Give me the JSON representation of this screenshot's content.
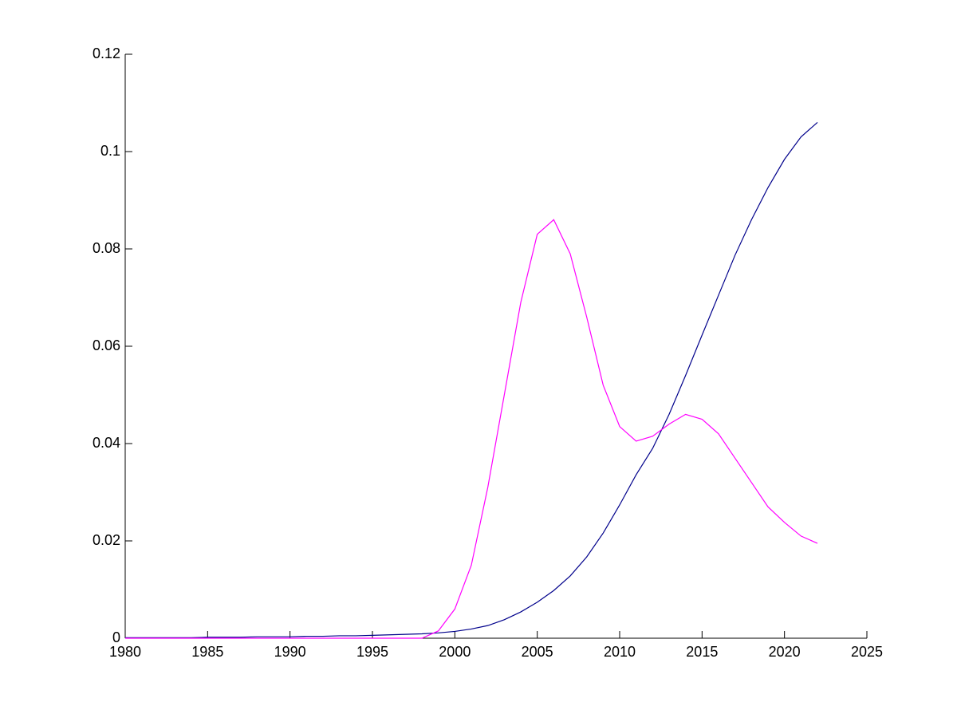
{
  "chart_data": {
    "type": "line",
    "x": [
      1980,
      1981,
      1982,
      1983,
      1984,
      1985,
      1986,
      1987,
      1988,
      1989,
      1990,
      1991,
      1992,
      1993,
      1994,
      1995,
      1996,
      1997,
      1998,
      1999,
      2000,
      2001,
      2002,
      2003,
      2004,
      2005,
      2006,
      2007,
      2008,
      2009,
      2010,
      2011,
      2012,
      2013,
      2014,
      2015,
      2016,
      2017,
      2018,
      2019,
      2020,
      2021,
      2022
    ],
    "series": [
      {
        "color": "#00008b",
        "values": [
          0.0001,
          0.0001,
          0.0001,
          0.0001,
          0.0001,
          0.0002,
          0.0002,
          0.0002,
          0.0003,
          0.0003,
          0.0003,
          0.0004,
          0.0004,
          0.0005,
          0.0005,
          0.0006,
          0.0007,
          0.0008,
          0.0009,
          0.0011,
          0.0014,
          0.0019,
          0.0026,
          0.0038,
          0.0054,
          0.0074,
          0.0098,
          0.0128,
          0.0167,
          0.0216,
          0.0274,
          0.0336,
          0.039,
          0.046,
          0.054,
          0.0623,
          0.0705,
          0.0787,
          0.086,
          0.0926,
          0.0984,
          0.103,
          0.106
        ]
      },
      {
        "color": "#ff00ff",
        "values": [
          0,
          0,
          0,
          0,
          0,
          0,
          0,
          0,
          0,
          0,
          0,
          0,
          0,
          0,
          0,
          0,
          0,
          0,
          0,
          0.0015,
          0.006,
          0.015,
          0.031,
          0.05,
          0.069,
          0.083,
          0.086,
          0.079,
          0.066,
          0.052,
          0.0435,
          0.0405,
          0.0415,
          0.044,
          0.046,
          0.045,
          0.042,
          0.037,
          0.032,
          0.027,
          0.0238,
          0.021,
          0.0195
        ]
      }
    ],
    "xlim": [
      1980,
      2025
    ],
    "xticks": [
      1980,
      1985,
      1990,
      1995,
      2000,
      2005,
      2010,
      2015,
      2020,
      2025
    ],
    "ylim": [
      0,
      0.12
    ],
    "yticks": [
      0,
      0.02,
      0.04,
      0.06,
      0.08,
      0.1,
      0.12
    ]
  }
}
